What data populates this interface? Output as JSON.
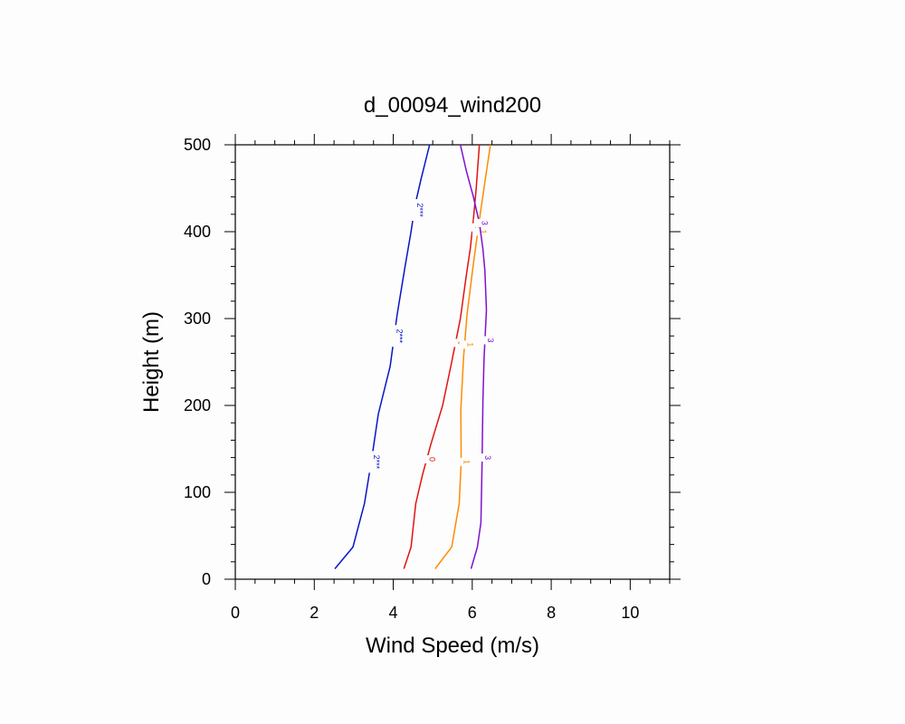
{
  "chart_data": {
    "type": "line",
    "title": "d_00094_wind200",
    "xlabel": "Wind Speed (m/s)",
    "ylabel": "Height (m)",
    "xlim": [
      0,
      11
    ],
    "ylim": [
      0,
      500
    ],
    "xticks": [
      0,
      2,
      4,
      6,
      8,
      10
    ],
    "yticks": [
      0,
      100,
      200,
      300,
      400,
      500
    ],
    "xtick_labels": [
      "0",
      "2",
      "4",
      "6",
      "8",
      "10"
    ],
    "ytick_labels": [
      "0",
      "100",
      "200",
      "300",
      "400",
      "500"
    ],
    "series": [
      {
        "name": "2***",
        "color": "#0a14c8",
        "label_heights": [
          135,
          280,
          425
        ],
        "points": [
          [
            2.52,
            12
          ],
          [
            2.98,
            37
          ],
          [
            3.27,
            87
          ],
          [
            3.45,
            137
          ],
          [
            3.62,
            190
          ],
          [
            3.92,
            245
          ],
          [
            4.1,
            305
          ],
          [
            4.3,
            360
          ],
          [
            4.45,
            400
          ],
          [
            4.55,
            430
          ],
          [
            4.7,
            460
          ],
          [
            4.92,
            500
          ]
        ]
      },
      {
        "name": "0",
        "color": "#e0140f",
        "label_heights": [
          138,
          272,
          405
        ],
        "points": [
          [
            4.27,
            12
          ],
          [
            4.45,
            37
          ],
          [
            4.57,
            87
          ],
          [
            4.74,
            120
          ],
          [
            4.95,
            155
          ],
          [
            5.25,
            200
          ],
          [
            5.48,
            250
          ],
          [
            5.7,
            300
          ],
          [
            5.85,
            350
          ],
          [
            5.95,
            380
          ],
          [
            6.02,
            410
          ],
          [
            6.1,
            450
          ],
          [
            6.18,
            500
          ]
        ]
      },
      {
        "name": "1",
        "color": "#ff8c00",
        "label_heights": [
          135,
          270,
          400
        ],
        "points": [
          [
            5.06,
            12
          ],
          [
            5.48,
            37
          ],
          [
            5.67,
            87
          ],
          [
            5.72,
            135
          ],
          [
            5.71,
            195
          ],
          [
            5.78,
            255
          ],
          [
            5.87,
            305
          ],
          [
            6.02,
            360
          ],
          [
            6.17,
            410
          ],
          [
            6.33,
            460
          ],
          [
            6.46,
            500
          ]
        ]
      },
      {
        "name": "3",
        "color": "#8010d0",
        "label_heights": [
          140,
          275,
          410
        ],
        "points": [
          [
            5.97,
            12
          ],
          [
            6.13,
            37
          ],
          [
            6.22,
            65
          ],
          [
            6.25,
            135
          ],
          [
            6.27,
            205
          ],
          [
            6.3,
            255
          ],
          [
            6.36,
            310
          ],
          [
            6.32,
            355
          ],
          [
            6.27,
            380
          ],
          [
            6.18,
            410
          ],
          [
            6.03,
            440
          ],
          [
            5.85,
            470
          ],
          [
            5.7,
            500
          ]
        ]
      }
    ]
  }
}
